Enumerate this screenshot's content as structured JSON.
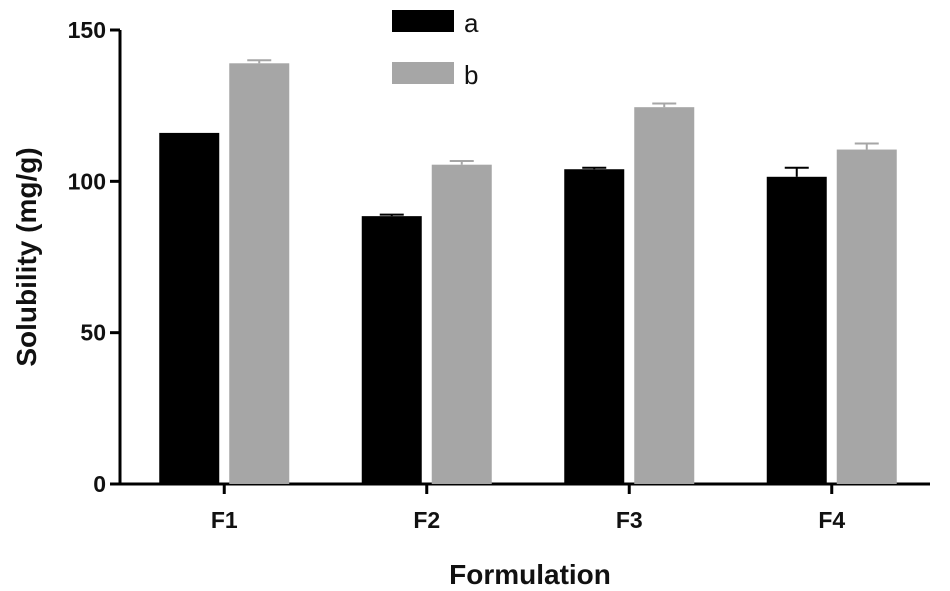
{
  "chart_data": {
    "type": "bar",
    "title": "",
    "xlabel": "Formulation",
    "ylabel": "Solubility (mg/g)",
    "categories": [
      "F1",
      "F2",
      "F3",
      "F4"
    ],
    "ylim": [
      0,
      150
    ],
    "yticks": [
      0,
      50,
      100,
      150
    ],
    "series": [
      {
        "name": "a",
        "color": "#000000",
        "values": [
          116,
          88.5,
          104,
          101.5
        ],
        "errors": [
          0,
          0.5,
          0.5,
          3
        ]
      },
      {
        "name": "b",
        "color": "#a6a6a6",
        "values": [
          139,
          105.5,
          124.5,
          110.5
        ],
        "errors": [
          1,
          1.2,
          1.2,
          2
        ]
      }
    ],
    "legend_position": "top-center",
    "grid": false
  }
}
